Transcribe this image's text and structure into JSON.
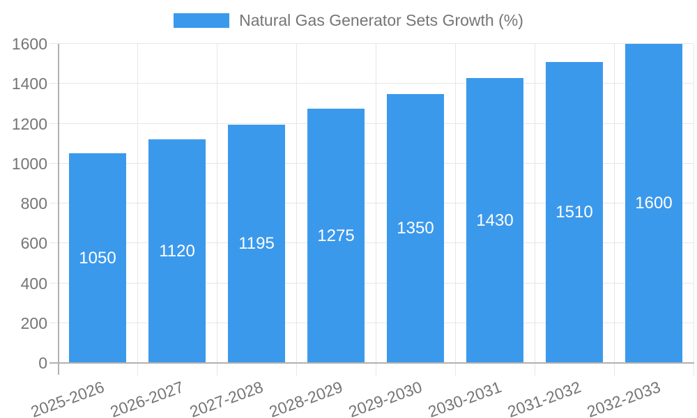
{
  "chart_data": {
    "type": "bar",
    "title": "Natural Gas Generator Sets Growth (%)",
    "legend_label": "Natural Gas Generator Sets Growth (%)",
    "legend_position": "top",
    "categories": [
      "2025-2026",
      "2026-2027",
      "2027-2028",
      "2028-2029",
      "2029-2030",
      "2030-2031",
      "2031-2032",
      "2032-2033"
    ],
    "values": [
      1050,
      1120,
      1195,
      1275,
      1350,
      1430,
      1510,
      1600
    ],
    "xlabel": "",
    "ylabel": "",
    "ylim": [
      0,
      1600
    ],
    "ytick_step": 200,
    "yticks": [
      0,
      200,
      400,
      600,
      800,
      1000,
      1200,
      1400,
      1600
    ],
    "grid": true,
    "x_label_rotation_deg": -20,
    "colors": {
      "bar": "#3B99EC",
      "value_label": "#FFFFFF",
      "axis_text": "#757575",
      "gridline": "#E6E6E6",
      "axis_line": "#B1B1B1",
      "background": "#FFFFFF"
    }
  }
}
